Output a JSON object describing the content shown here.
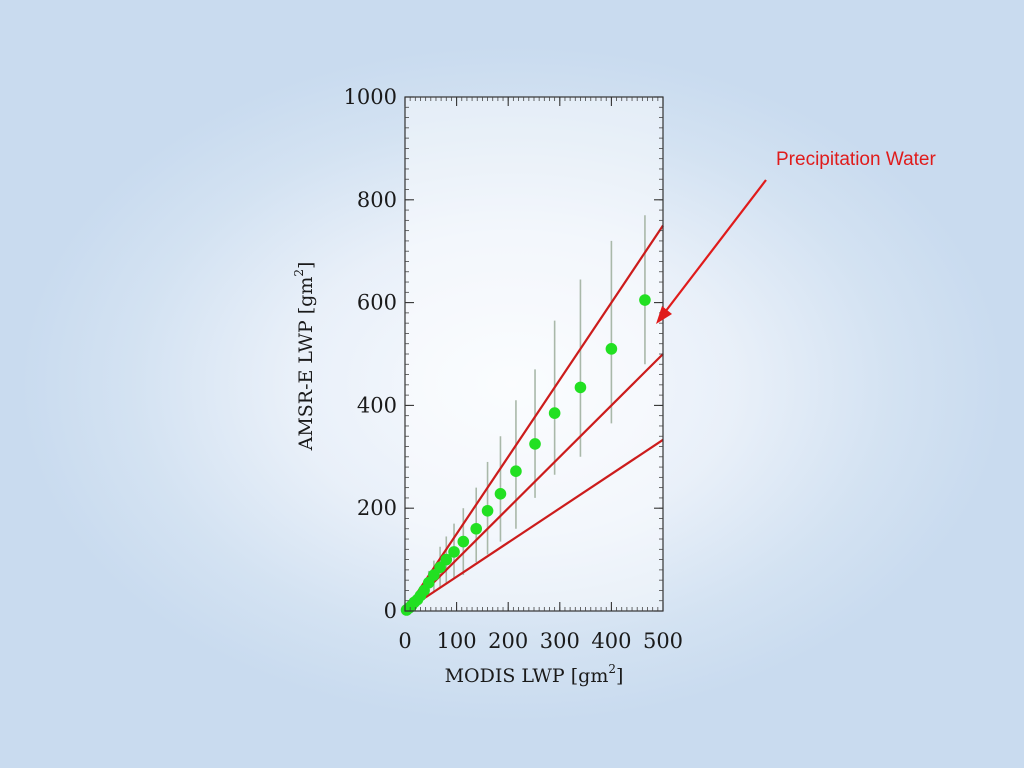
{
  "chart_data": {
    "type": "scatter",
    "title": "",
    "xlabel": "MODIS LWP [gm",
    "xlabel_sup": "2",
    "xlabel_close": "]",
    "ylabel": "AMSR-E LWP [gm",
    "ylabel_sup": "2",
    "ylabel_close": "]",
    "xlim": [
      0,
      500
    ],
    "ylim": [
      0,
      1000
    ],
    "xticks": [
      0,
      100,
      200,
      300,
      400,
      500
    ],
    "yticks": [
      0,
      200,
      400,
      600,
      800,
      1000
    ],
    "grid": false,
    "series": [
      {
        "kind": "points_with_error_bars",
        "color": "#22e022",
        "points": [
          {
            "x": 3,
            "y": 2,
            "ylow": 0,
            "yhigh": 5
          },
          {
            "x": 8,
            "y": 6,
            "ylow": 3,
            "yhigh": 10
          },
          {
            "x": 13,
            "y": 11,
            "ylow": 6,
            "yhigh": 18
          },
          {
            "x": 18,
            "y": 17,
            "ylow": 10,
            "yhigh": 26
          },
          {
            "x": 24,
            "y": 22,
            "ylow": 13,
            "yhigh": 33
          },
          {
            "x": 30,
            "y": 30,
            "ylow": 17,
            "yhigh": 45
          },
          {
            "x": 37,
            "y": 40,
            "ylow": 22,
            "yhigh": 58
          },
          {
            "x": 46,
            "y": 55,
            "ylow": 30,
            "yhigh": 78
          },
          {
            "x": 56,
            "y": 70,
            "ylow": 38,
            "yhigh": 98
          },
          {
            "x": 68,
            "y": 85,
            "ylow": 45,
            "yhigh": 125
          },
          {
            "x": 80,
            "y": 100,
            "ylow": 55,
            "yhigh": 145
          },
          {
            "x": 95,
            "y": 115,
            "ylow": 65,
            "yhigh": 170
          },
          {
            "x": 113,
            "y": 135,
            "ylow": 70,
            "yhigh": 200
          },
          {
            "x": 138,
            "y": 160,
            "ylow": 95,
            "yhigh": 240
          },
          {
            "x": 160,
            "y": 195,
            "ylow": 110,
            "yhigh": 290
          },
          {
            "x": 185,
            "y": 228,
            "ylow": 135,
            "yhigh": 340
          },
          {
            "x": 215,
            "y": 272,
            "ylow": 160,
            "yhigh": 410
          },
          {
            "x": 252,
            "y": 325,
            "ylow": 220,
            "yhigh": 470
          },
          {
            "x": 290,
            "y": 385,
            "ylow": 265,
            "yhigh": 565
          },
          {
            "x": 340,
            "y": 435,
            "ylow": 300,
            "yhigh": 645
          },
          {
            "x": 400,
            "y": 510,
            "ylow": 365,
            "yhigh": 720
          },
          {
            "x": 465,
            "y": 605,
            "ylow": 480,
            "yhigh": 770
          }
        ]
      },
      {
        "kind": "line",
        "color": "#cc1c1c",
        "x": [
          0,
          500
        ],
        "y": [
          0,
          750
        ]
      },
      {
        "kind": "line",
        "color": "#cc1c1c",
        "x": [
          0,
          500
        ],
        "y": [
          0,
          500
        ]
      },
      {
        "kind": "line",
        "color": "#cc1c1c",
        "x": [
          0,
          500
        ],
        "y": [
          0,
          333
        ]
      }
    ],
    "annotations": [
      {
        "text": "Precipitation Water",
        "color": "#e01b1b",
        "arrow_points_to": "highest data point"
      }
    ]
  }
}
